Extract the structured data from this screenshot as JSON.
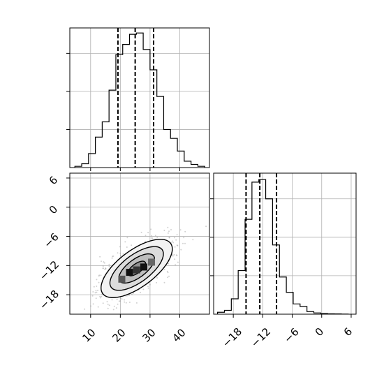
{
  "chart_data": {
    "type": "corner",
    "grid": true,
    "panels": [
      {
        "id": "hist-x",
        "type": "histogram",
        "variable": "x",
        "xlim": [
          3,
          50
        ],
        "ylim": [
          0,
          1100
        ],
        "bin_edges": [
          4.7,
          7.0,
          9.3,
          11.6,
          13.9,
          16.2,
          18.5,
          20.8,
          23.1,
          25.4,
          27.7,
          30.0,
          32.3,
          34.6,
          36.9,
          39.2,
          41.5,
          43.8,
          46.1,
          48.4
        ],
        "counts": [
          10,
          30,
          110,
          240,
          360,
          610,
          890,
          970,
          1050,
          1060,
          930,
          770,
          560,
          300,
          230,
          130,
          50,
          25,
          10
        ],
        "quantiles": [
          19.2,
          25.0,
          31.2
        ],
        "grid_x": [
          10,
          20,
          30,
          40
        ],
        "grid_y": [
          300,
          600,
          900
        ]
      },
      {
        "id": "hist-y",
        "type": "histogram",
        "variable": "y",
        "xlim": [
          -22,
          7
        ],
        "ylim": [
          0,
          1100
        ],
        "bin_edges": [
          -21.2,
          -19.8,
          -18.4,
          -17.0,
          -15.6,
          -14.2,
          -12.8,
          -11.4,
          -10.0,
          -8.6,
          -7.2,
          -5.8,
          -4.4,
          -3.0,
          -1.6,
          -0.2,
          1.2,
          2.6,
          4.0,
          5.4
        ],
        "counts": [
          15,
          30,
          120,
          340,
          740,
          1030,
          1050,
          900,
          540,
          290,
          170,
          80,
          60,
          20,
          10,
          5,
          3,
          2,
          1
        ],
        "quantiles": [
          -15.4,
          -12.6,
          -9.2
        ],
        "grid_x": [
          -18,
          -12,
          -6,
          0,
          6
        ],
        "grid_y": [
          300,
          600,
          900
        ]
      },
      {
        "id": "joint",
        "type": "2d-histogram",
        "xlim": [
          3,
          50
        ],
        "ylim": [
          -22,
          7
        ],
        "center": [
          25.5,
          -12.6
        ],
        "covariance": [
          [
            36,
            12
          ],
          [
            12,
            9
          ]
        ],
        "contour_levels_sigma": [
          0.5,
          1,
          1.5,
          2
        ],
        "grid_x": [
          10,
          20,
          30,
          40
        ],
        "grid_y": [
          -18,
          -12,
          -6,
          0,
          6
        ]
      }
    ],
    "axes": {
      "joint_x_ticks": [
        "10",
        "20",
        "30",
        "40"
      ],
      "joint_y_ticks": [
        "6",
        "0",
        "−6",
        "−12",
        "−18"
      ],
      "hist_y_x_ticks": [
        "−18",
        "−12",
        "−6",
        "0",
        "6"
      ]
    }
  }
}
